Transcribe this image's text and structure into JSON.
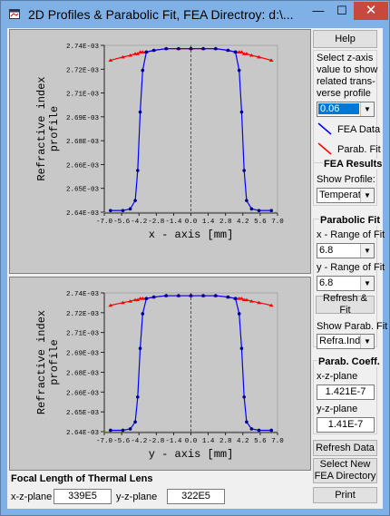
{
  "window": {
    "title": "2D Profiles & Parabolic Fit, FEA Directroy: d:\\...",
    "minimize": "—",
    "maximize": "☐",
    "close": "✕"
  },
  "plots": [
    {
      "ylabel_line1": "Refractive index",
      "ylabel_line2": "profile",
      "xlabel": "x - axis [mm]",
      "yticks": [
        "2.74E-03",
        "2.72E-03",
        "2.71E-03",
        "2.69E-03",
        "2.68E-03",
        "2.66E-03",
        "2.65E-03",
        "2.64E-03"
      ],
      "xticks": [
        "-7.0",
        "-5.6",
        "-4.2",
        "-2.8",
        "-1.4",
        "0.0",
        "1.4",
        "2.8",
        "4.2",
        "5.6",
        "7.0"
      ]
    },
    {
      "ylabel_line1": "Refractive index",
      "ylabel_line2": "profile",
      "xlabel": "y - axis [mm]",
      "yticks": [
        "2.74E-03",
        "2.72E-03",
        "2.71E-03",
        "2.69E-03",
        "2.68E-03",
        "2.66E-03",
        "2.65E-03",
        "2.64E-03"
      ],
      "xticks": [
        "-7.0",
        "-5.6",
        "-4.2",
        "-2.8",
        "-1.4",
        "0.0",
        "1.4",
        "2.8",
        "4.2",
        "5.6",
        "7.0"
      ]
    }
  ],
  "chart_data": [
    {
      "type": "line",
      "xlabel": "x - axis [mm]",
      "ylabel": "Refractive index profile",
      "xlim": [
        -7.0,
        7.0
      ],
      "ylim": [
        0.00264,
        0.00274
      ],
      "x": [
        -6.5,
        -5.5,
        -4.9,
        -4.5,
        -4.3,
        -4.1,
        -3.9,
        -3.6,
        -3.0,
        -2.0,
        -1.0,
        0.0,
        1.0,
        2.0,
        3.0,
        3.6,
        3.9,
        4.1,
        4.3,
        4.5,
        4.9,
        5.5,
        6.5
      ],
      "series": [
        {
          "name": "FEA Data",
          "color": "#0000ff",
          "values": [
            0.002641,
            0.002641,
            0.002642,
            0.002647,
            0.002665,
            0.0027,
            0.002725,
            0.002736,
            0.002737,
            0.002738,
            0.002738,
            0.002738,
            0.002738,
            0.002738,
            0.002737,
            0.002736,
            0.002725,
            0.0027,
            0.002665,
            0.002647,
            0.002642,
            0.002641,
            0.002641
          ]
        },
        {
          "name": "Parab. Fit",
          "color": "#ff0000",
          "values": [
            0.002731,
            0.002733,
            0.002734,
            0.002735,
            0.002735,
            0.002736,
            0.002736,
            0.002736,
            0.002737,
            0.002738,
            0.002738,
            0.002738,
            0.002738,
            0.002738,
            0.002737,
            0.002736,
            0.002736,
            0.002736,
            0.002735,
            0.002735,
            0.002734,
            0.002733,
            0.002731
          ]
        }
      ]
    },
    {
      "type": "line",
      "xlabel": "y - axis [mm]",
      "ylabel": "Refractive index profile",
      "xlim": [
        -7.0,
        7.0
      ],
      "ylim": [
        0.00264,
        0.00274
      ],
      "x": [
        -6.5,
        -5.5,
        -4.9,
        -4.5,
        -4.3,
        -4.1,
        -3.9,
        -3.6,
        -3.0,
        -2.0,
        -1.0,
        0.0,
        1.0,
        2.0,
        3.0,
        3.6,
        3.9,
        4.1,
        4.3,
        4.5,
        4.9,
        5.5,
        6.5
      ],
      "series": [
        {
          "name": "FEA Data",
          "color": "#0000ff",
          "values": [
            0.002641,
            0.002641,
            0.002642,
            0.002647,
            0.002665,
            0.0027,
            0.002725,
            0.002736,
            0.002737,
            0.002738,
            0.002738,
            0.002738,
            0.002738,
            0.002738,
            0.002737,
            0.002736,
            0.002725,
            0.0027,
            0.002665,
            0.002647,
            0.002642,
            0.002641,
            0.002641
          ]
        },
        {
          "name": "Parab. Fit",
          "color": "#ff0000",
          "values": [
            0.002731,
            0.002733,
            0.002734,
            0.002735,
            0.002735,
            0.002736,
            0.002736,
            0.002736,
            0.002737,
            0.002738,
            0.002738,
            0.002738,
            0.002738,
            0.002738,
            0.002737,
            0.002736,
            0.002736,
            0.002736,
            0.002735,
            0.002735,
            0.002734,
            0.002733,
            0.002731
          ]
        }
      ]
    }
  ],
  "sidebar": {
    "help": "Help",
    "zaxis": {
      "line1": "Select z-axis",
      "line2": "value to show",
      "line3": "related trans-",
      "line4": "verse profile",
      "value": "0.06"
    },
    "legend": {
      "fea": "FEA Data",
      "fit": "Parab. Fit"
    },
    "fea_results": {
      "title": "FEA Results",
      "show_profile": "Show Profile:",
      "value": "Temperatur"
    },
    "parabolic_fit": {
      "title": "Parabolic Fit",
      "x_range": "x - Range of Fit",
      "x_value": "6.8",
      "y_range": "y -  Range of Fit",
      "y_value": "6.8",
      "refresh_fit": "Refresh & Fit",
      "show_fit": "Show Parab. Fit",
      "fit_value": "Refra.Index"
    },
    "coeff": {
      "title": "Parab.  Coeff.",
      "xz_label": "x-z-plane",
      "xz_value": "1.421E-7",
      "yz_label": "y-z-plane",
      "yz_value": "1.41E-7"
    },
    "refresh_data": "Refresh Data",
    "select_new_1": "Select New",
    "select_new_2": "FEA Directory",
    "print": "Print"
  },
  "focal": {
    "title": "Focal Length of Thermal Lens",
    "xz_label": "x-z-plane",
    "xz_value": "339E5",
    "yz_label": "y-z-plane",
    "yz_value": "322E5"
  }
}
